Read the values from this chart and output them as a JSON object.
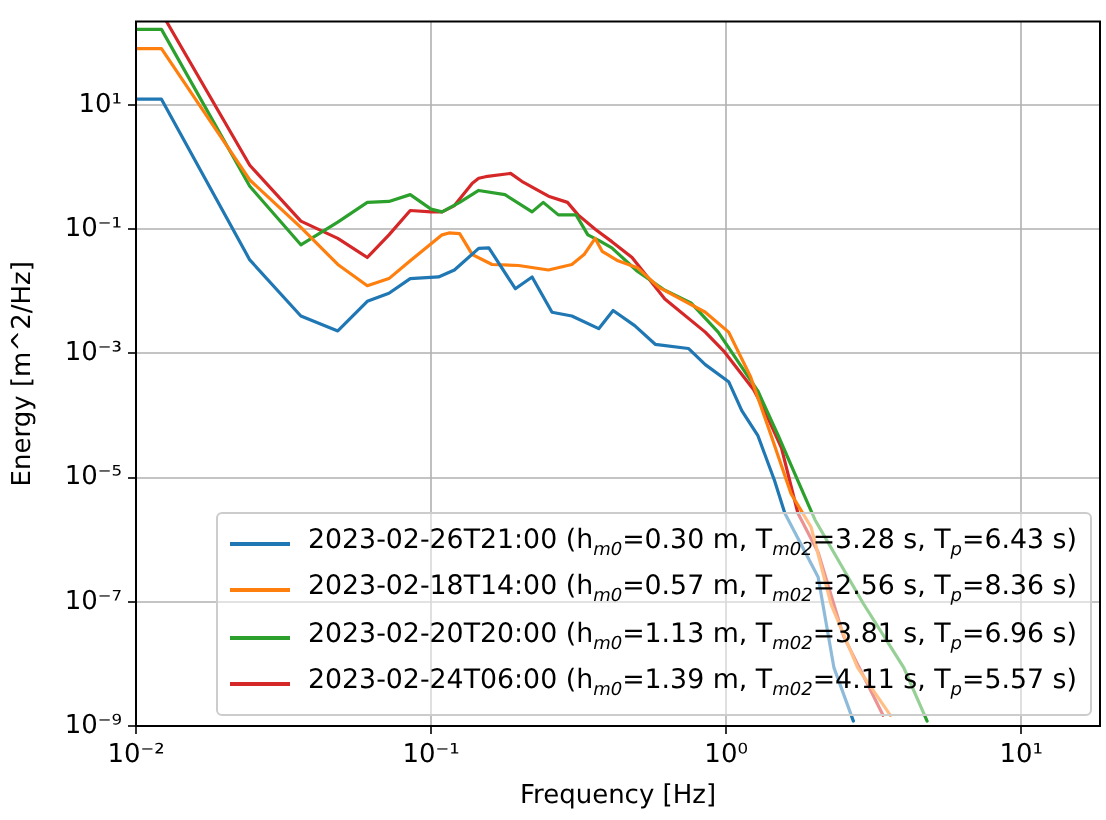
{
  "chart_data": {
    "type": "line",
    "xlabel": "Frequency [Hz]",
    "ylabel": "Energy [m^2/Hz]",
    "log": "xy",
    "grid": true,
    "legend": "bottom right",
    "marker": "none",
    "line_style": "solid",
    "xlim": [
      0.01,
      18.5
    ],
    "ylim": [
      1e-09,
      220
    ],
    "xticks": [
      {
        "value": 0.01,
        "label": "10⁻²"
      },
      {
        "value": 0.1,
        "label": "10⁻¹"
      },
      {
        "value": 1,
        "label": "10⁰"
      },
      {
        "value": 10,
        "label": "10¹"
      }
    ],
    "yticks": [
      {
        "value": 1e-09,
        "label": "10⁻⁹"
      },
      {
        "value": 1e-07,
        "label": "10⁻⁷"
      },
      {
        "value": 1e-05,
        "label": "10⁻⁵"
      },
      {
        "value": 0.001,
        "label": "10⁻³"
      },
      {
        "value": 0.1,
        "label": "10⁻¹"
      },
      {
        "value": 10,
        "label": "10¹"
      }
    ],
    "series": [
      {
        "name": "2023-02-26T21:00 (h$_{m0}$=0.30 m, T$_{m02}$=3.28 s, T$_{p}$=6.43 s)",
        "color": "#1f77b4",
        "x": [
          0.01,
          0.0122,
          0.0243,
          0.0362,
          0.0483,
          0.0608,
          0.072,
          0.085,
          0.106,
          0.12,
          0.145,
          0.157,
          0.193,
          0.22,
          0.257,
          0.3,
          0.37,
          0.414,
          0.49,
          0.575,
          0.745,
          0.85,
          1.02,
          1.13,
          1.28,
          1.46,
          1.58,
          2.05,
          2.32,
          2.7
        ],
        "values": [
          12.4,
          12.4,
          0.032,
          0.004,
          0.0023,
          0.0069,
          0.0093,
          0.016,
          0.017,
          0.022,
          0.049,
          0.05,
          0.011,
          0.017,
          0.0046,
          0.004,
          0.0025,
          0.0049,
          0.0028,
          0.0014,
          0.0012,
          0.00066,
          0.00035,
          0.00012,
          4.8e-05,
          8.9e-06,
          2.7e-06,
          2.5e-07,
          8.7e-09,
          1.2e-09
        ]
      },
      {
        "name": "2023-02-18T14:00 (h$_{m0}$=0.57 m, T$_{m02}$=2.56 s, T$_{p}$=8.36 s)",
        "color": "#ff7f0e",
        "x": [
          0.01,
          0.0122,
          0.0243,
          0.0362,
          0.0483,
          0.0608,
          0.072,
          0.085,
          0.109,
          0.115,
          0.125,
          0.138,
          0.161,
          0.198,
          0.25,
          0.3,
          0.33,
          0.36,
          0.38,
          0.43,
          0.5,
          0.59,
          0.85,
          1.02,
          1.21,
          1.42,
          1.66,
          1.94,
          2.27,
          2.79,
          3.6
        ],
        "values": [
          81,
          81,
          0.62,
          0.107,
          0.027,
          0.0123,
          0.016,
          0.031,
          0.081,
          0.087,
          0.085,
          0.039,
          0.027,
          0.026,
          0.022,
          0.027,
          0.039,
          0.071,
          0.044,
          0.031,
          0.024,
          0.0117,
          0.0046,
          0.0022,
          0.00042,
          4.8e-05,
          5.5e-06,
          1.6e-06,
          9e-08,
          8.7e-09,
          1.5e-09
        ]
      },
      {
        "name": "2023-02-20T20:00 (h$_{m0}$=1.13 m, T$_{m02}$=3.81 s, T$_{p}$=6.96 s)",
        "color": "#2ca02c",
        "x": [
          0.01,
          0.0122,
          0.0243,
          0.0362,
          0.0483,
          0.0608,
          0.072,
          0.085,
          0.1,
          0.109,
          0.125,
          0.145,
          0.178,
          0.22,
          0.24,
          0.27,
          0.31,
          0.34,
          0.37,
          0.41,
          0.5,
          0.62,
          0.76,
          0.94,
          1.28,
          1.5,
          1.75,
          2.0,
          2.92,
          4.0,
          4.8
        ],
        "values": [
          165,
          165,
          0.49,
          0.056,
          0.13,
          0.27,
          0.28,
          0.36,
          0.21,
          0.19,
          0.27,
          0.42,
          0.36,
          0.19,
          0.27,
          0.17,
          0.17,
          0.081,
          0.066,
          0.05,
          0.021,
          0.0104,
          0.0065,
          0.0022,
          0.00025,
          4.8e-05,
          8.9e-06,
          2.1e-06,
          9.3e-08,
          8.7e-09,
          1.2e-09
        ]
      },
      {
        "name": "2023-02-24T06:00 (h$_{m0}$=1.39 m, T$_{m02}$=4.11 s, T$_{p}$=5.57 s)",
        "color": "#d62728",
        "x": [
          0.0127,
          0.0243,
          0.0362,
          0.0483,
          0.0608,
          0.072,
          0.085,
          0.1,
          0.109,
          0.12,
          0.138,
          0.145,
          0.153,
          0.186,
          0.203,
          0.25,
          0.29,
          0.315,
          0.36,
          0.41,
          0.48,
          0.62,
          0.85,
          0.98,
          1.24,
          1.35,
          1.54,
          1.75,
          2.05,
          2.5,
          3.4
        ],
        "values": [
          219,
          1.07,
          0.135,
          0.071,
          0.035,
          0.081,
          0.2,
          0.19,
          0.19,
          0.24,
          0.55,
          0.66,
          0.7,
          0.79,
          0.59,
          0.34,
          0.27,
          0.17,
          0.1,
          0.063,
          0.035,
          0.0075,
          0.0022,
          0.0011,
          0.00026,
          0.00012,
          3e-05,
          2.7e-06,
          6.3e-07,
          2.8e-08,
          1.5e-09
        ]
      }
    ]
  }
}
